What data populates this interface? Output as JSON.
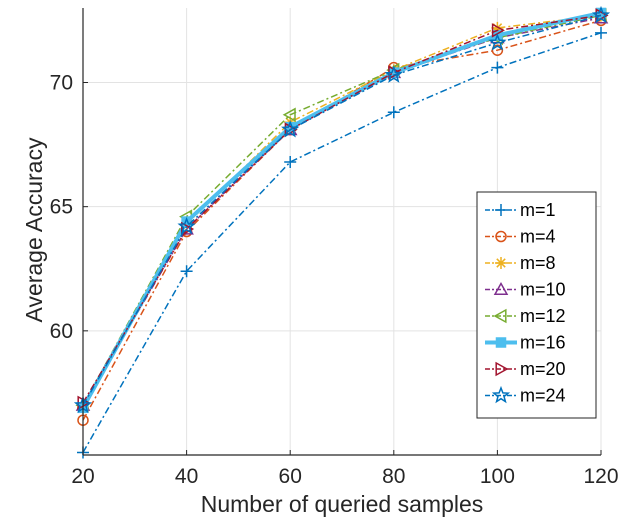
{
  "chart_data": {
    "type": "line",
    "xlabel": "Number of queried samples",
    "ylabel": "Average Accuracy",
    "x": [
      20,
      40,
      60,
      80,
      100,
      120
    ],
    "xlim": [
      20,
      120
    ],
    "ylim": [
      55,
      73
    ],
    "xticks": [
      20,
      40,
      60,
      80,
      100,
      120
    ],
    "yticks": [
      60,
      65,
      70
    ],
    "grid": true,
    "legend_position": "bottom-right",
    "series": [
      {
        "name": "m=1",
        "values": [
          55.1,
          62.4,
          66.8,
          68.8,
          70.6,
          72.0
        ],
        "color": "#0072BD",
        "marker": "plus",
        "line_width": 1.5
      },
      {
        "name": "m=4",
        "values": [
          56.4,
          64.0,
          68.1,
          70.6,
          71.3,
          72.5
        ],
        "color": "#D95319",
        "marker": "circle",
        "line_width": 1.5
      },
      {
        "name": "m=8",
        "values": [
          56.9,
          64.3,
          68.4,
          70.5,
          72.2,
          72.7
        ],
        "color": "#EDB120",
        "marker": "asterisk",
        "line_width": 1.5
      },
      {
        "name": "m=10",
        "values": [
          57.0,
          64.1,
          68.1,
          70.4,
          71.8,
          72.6
        ],
        "color": "#7E2F8E",
        "marker": "triangle-up",
        "line_width": 1.5
      },
      {
        "name": "m=12",
        "values": [
          57.0,
          64.6,
          68.7,
          70.5,
          71.8,
          72.7
        ],
        "color": "#77AC30",
        "marker": "triangle-left",
        "line_width": 1.5
      },
      {
        "name": "m=16",
        "values": [
          56.9,
          64.4,
          68.2,
          70.4,
          71.9,
          72.8
        ],
        "color": "#4DBEEE",
        "marker": "square",
        "line_width": 4
      },
      {
        "name": "m=20",
        "values": [
          57.1,
          64.1,
          68.1,
          70.4,
          72.1,
          72.7
        ],
        "color": "#A2142F",
        "marker": "triangle-right",
        "line_width": 1.5
      },
      {
        "name": "m=24",
        "values": [
          57.0,
          64.2,
          68.1,
          70.3,
          71.6,
          72.7
        ],
        "color": "#0072BD",
        "marker": "pentagram",
        "line_width": 1.5
      }
    ]
  }
}
